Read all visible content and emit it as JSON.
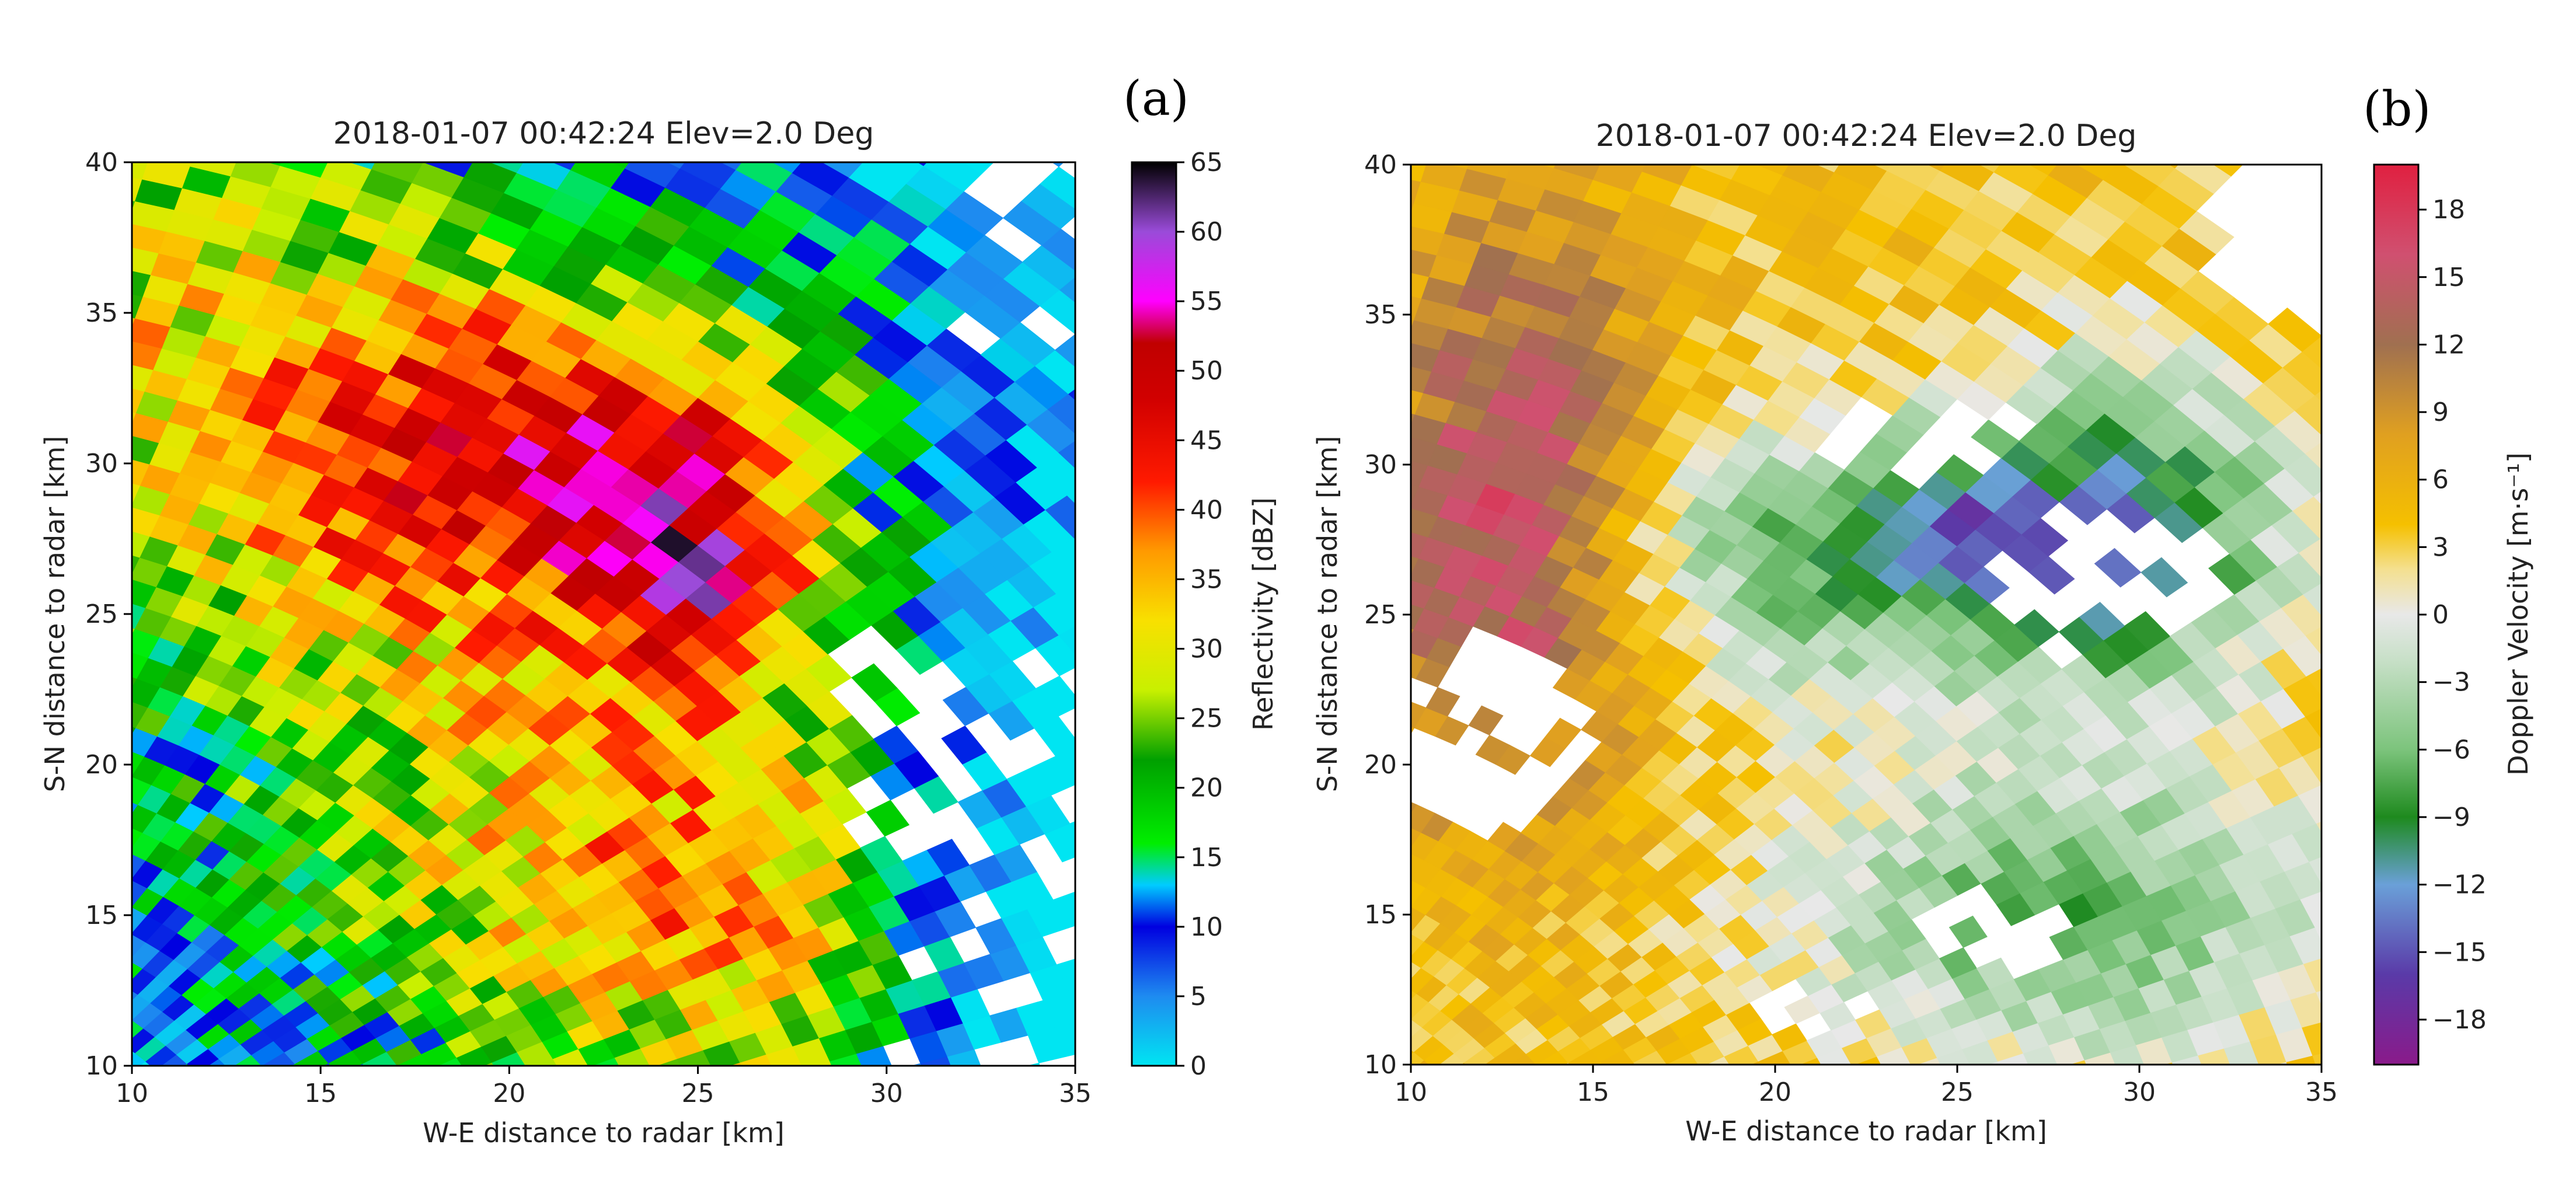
{
  "panels": [
    {
      "letter": "(a)",
      "title": "2018-01-07 00:42:24 Elev=2.0 Deg",
      "xlabel": "W-E distance to radar [km]",
      "ylabel": "S-N distance to radar [km]",
      "colorbar_label": "Reflectivity [dBZ]",
      "x_ticks": [
        "10",
        "15",
        "20",
        "25",
        "30",
        "35"
      ],
      "y_ticks": [
        "10",
        "15",
        "20",
        "25",
        "30",
        "35",
        "40"
      ],
      "cbar_ticks": [
        "0",
        "5",
        "10",
        "15",
        "20",
        "25",
        "30",
        "35",
        "40",
        "45",
        "50",
        "55",
        "60",
        "65"
      ]
    },
    {
      "letter": "(b)",
      "title": "2018-01-07 00:42:24 Elev=2.0 Deg",
      "xlabel": "W-E distance to radar [km]",
      "ylabel": "S-N distance to radar [km]",
      "colorbar_label": "Doppler Velocity [m·s⁻¹]",
      "x_ticks": [
        "10",
        "15",
        "20",
        "25",
        "30",
        "35"
      ],
      "y_ticks": [
        "10",
        "15",
        "20",
        "25",
        "30",
        "35",
        "40"
      ],
      "cbar_ticks": [
        "18",
        "15",
        "12",
        "9",
        "6",
        "3",
        "0",
        "−3",
        "−6",
        "−9",
        "−12",
        "−15",
        "−18"
      ]
    }
  ],
  "chart_data": [
    {
      "type": "heatmap",
      "title": "2018-01-07 00:42:24 Elev=2.0 Deg",
      "xlabel": "W-E distance to radar [km]",
      "ylabel": "S-N distance to radar [km]",
      "xlim": [
        10,
        35
      ],
      "ylim": [
        10,
        40
      ],
      "colorbar": {
        "label": "Reflectivity [dBZ]",
        "range": [
          0,
          65
        ]
      },
      "colormap": [
        {
          "v": 0,
          "color": "#00e5f2"
        },
        {
          "v": 5,
          "color": "#1e8bf0"
        },
        {
          "v": 10,
          "color": "#0000e0"
        },
        {
          "v": 13,
          "color": "#00ccff"
        },
        {
          "v": 16,
          "color": "#00ee00"
        },
        {
          "v": 22,
          "color": "#00a000"
        },
        {
          "v": 27,
          "color": "#c8f000"
        },
        {
          "v": 32,
          "color": "#f8e000"
        },
        {
          "v": 37,
          "color": "#ff9a00"
        },
        {
          "v": 42,
          "color": "#ff1a00"
        },
        {
          "v": 48,
          "color": "#d10000"
        },
        {
          "v": 52,
          "color": "#c00000"
        },
        {
          "v": 55,
          "color": "#ff00ff"
        },
        {
          "v": 60,
          "color": "#9a4bd9"
        },
        {
          "v": 65,
          "color": "#000000"
        }
      ],
      "features": {
        "background_value": 0,
        "core_max_value": 56,
        "core_location_km": [
          25,
          26
        ]
      }
    },
    {
      "type": "heatmap",
      "title": "2018-01-07 00:42:24 Elev=2.0 Deg",
      "xlabel": "W-E distance to radar [km]",
      "ylabel": "S-N distance to radar [km]",
      "xlim": [
        10,
        35
      ],
      "ylim": [
        10,
        40
      ],
      "colorbar": {
        "label": "Doppler Velocity [m·s⁻¹]",
        "range": [
          -20,
          20
        ]
      },
      "colormap": [
        {
          "v": -20,
          "color": "#8a1a8a"
        },
        {
          "v": -16,
          "color": "#5a3aa8"
        },
        {
          "v": -12,
          "color": "#6aa0d8"
        },
        {
          "v": -9,
          "color": "#1e8a1e"
        },
        {
          "v": -6,
          "color": "#7cc47c"
        },
        {
          "v": -2,
          "color": "#c8e0c8"
        },
        {
          "v": 0,
          "color": "#e8e8e8"
        },
        {
          "v": 2,
          "color": "#f4e090"
        },
        {
          "v": 4,
          "color": "#f5c000"
        },
        {
          "v": 8,
          "color": "#e0a020"
        },
        {
          "v": 12,
          "color": "#a07050"
        },
        {
          "v": 16,
          "color": "#d05070"
        },
        {
          "v": 20,
          "color": "#e02040"
        }
      ],
      "features": {
        "min_value": -10,
        "min_location_km": [
          25,
          28
        ],
        "max_value": 16,
        "max_location_km": [
          13,
          30
        ]
      }
    }
  ]
}
